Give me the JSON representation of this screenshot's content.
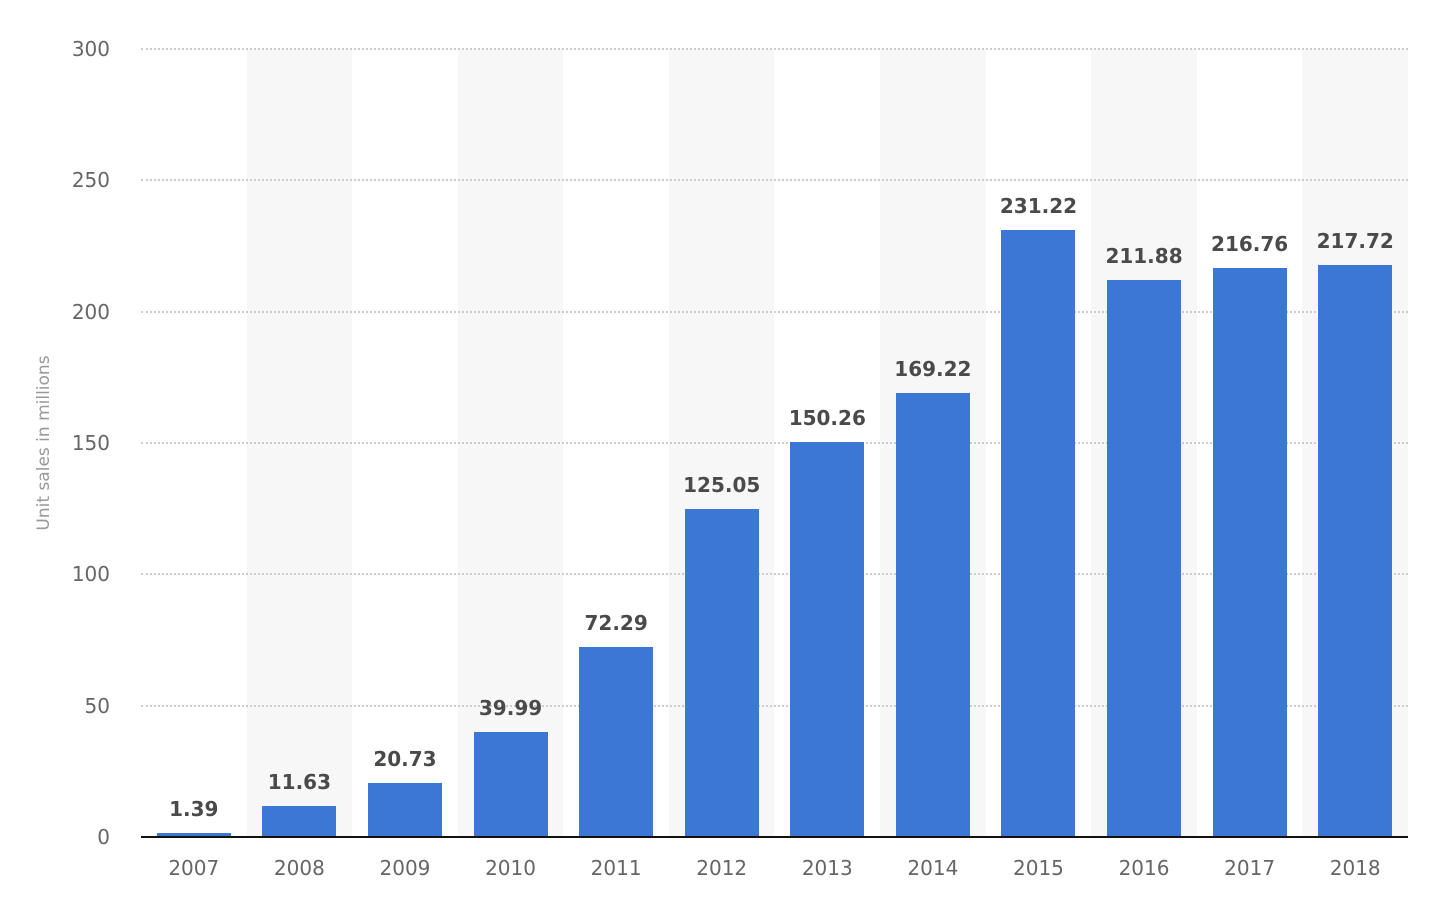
{
  "chart_data": {
    "type": "bar",
    "title": "",
    "xlabel": "",
    "ylabel": "Unit sales in millions",
    "categories": [
      "2007",
      "2008",
      "2009",
      "2010",
      "2011",
      "2012",
      "2013",
      "2014",
      "2015",
      "2016",
      "2017",
      "2018"
    ],
    "values": [
      1.39,
      11.63,
      20.73,
      39.99,
      72.29,
      125.05,
      150.26,
      169.22,
      231.22,
      211.88,
      216.76,
      217.72
    ],
    "value_labels": [
      "1.39",
      "11.63",
      "20.73",
      "39.99",
      "72.29",
      "125.05",
      "150.26",
      "169.22",
      "231.22",
      "211.88",
      "216.76",
      "217.72"
    ],
    "ylim": [
      0,
      300
    ],
    "yticks": [
      0,
      50,
      100,
      150,
      200,
      250,
      300
    ],
    "grid": true,
    "legend": "none",
    "colors": {
      "bar": "#3c77d6",
      "band": "#f7f7f7",
      "grid": "#cccccc",
      "axis": "#111111"
    }
  }
}
